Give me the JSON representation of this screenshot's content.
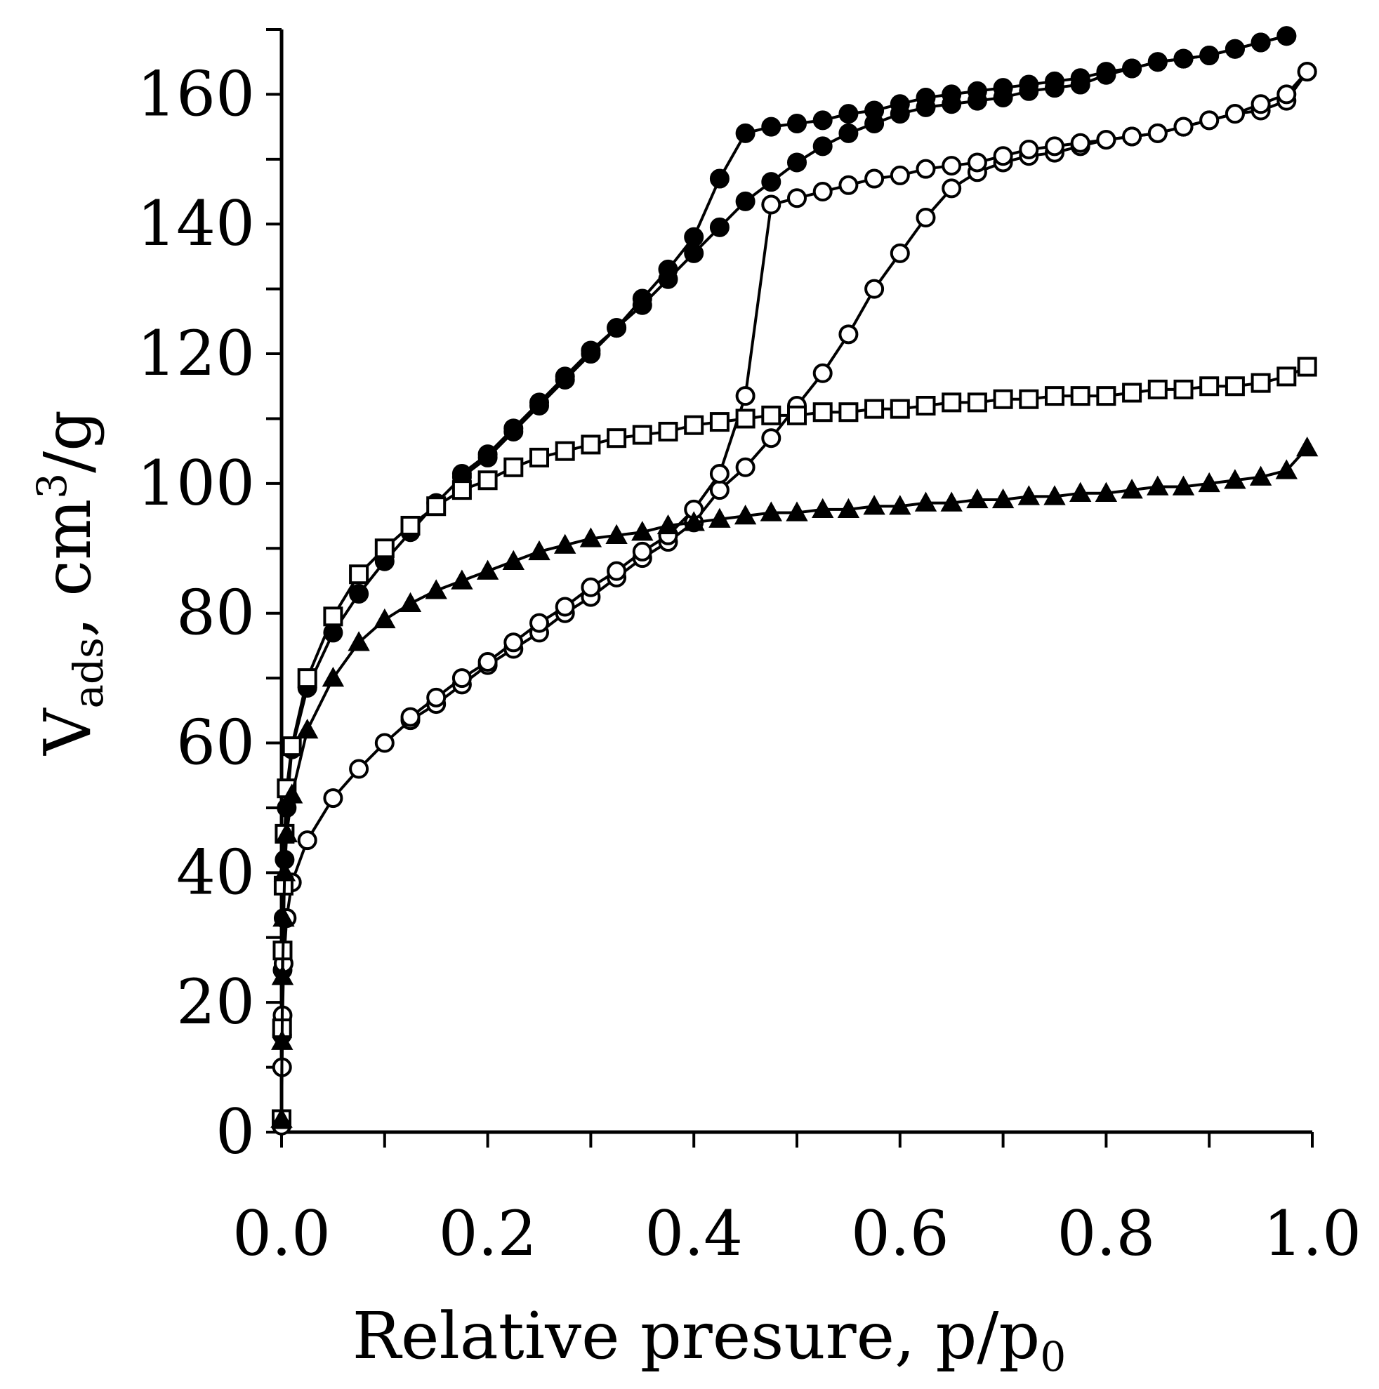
{
  "chart_data": {
    "type": "line",
    "title": "",
    "xlabel": "Relative presure, p/p",
    "xlabel_subscript": "0",
    "ylabel_main": "V",
    "ylabel_subscript": "ads",
    "ylabel_rest": ", cm",
    "ylabel_superscript": "3",
    "ylabel_tail": "/g",
    "xlim": [
      0,
      1.0
    ],
    "ylim": [
      0,
      170
    ],
    "x_ticks": [
      "0.0",
      "0.2",
      "0.4",
      "0.6",
      "0.8",
      "1.0"
    ],
    "y_ticks": [
      "0",
      "20",
      "40",
      "60",
      "80",
      "100",
      "120",
      "140",
      "160"
    ],
    "grid": false,
    "legend": "none",
    "series": [
      {
        "marker": "filled-circle",
        "adsorption": {
          "x": [
            0,
            0.0005,
            0.001,
            0.002,
            0.003,
            0.005,
            0.01,
            0.025,
            0.05,
            0.075,
            0.1,
            0.125,
            0.15,
            0.175,
            0.2,
            0.225,
            0.25,
            0.275,
            0.3,
            0.325,
            0.35,
            0.375,
            0.4,
            0.425,
            0.45,
            0.475,
            0.5,
            0.525,
            0.55,
            0.575,
            0.6,
            0.625,
            0.65,
            0.675,
            0.7,
            0.725,
            0.75,
            0.775,
            0.8,
            0.825,
            0.85,
            0.875,
            0.9,
            0.925,
            0.95,
            0.975
          ],
          "y": [
            2,
            15,
            25,
            33,
            42,
            50,
            59,
            68.5,
            77,
            83,
            88,
            92.5,
            97,
            101,
            104,
            108,
            112,
            116,
            120,
            124,
            127.5,
            131.5,
            135.5,
            139.5,
            143.5,
            146.5,
            149.5,
            152,
            154,
            155.5,
            157,
            158,
            158.5,
            159,
            159.5,
            160.5,
            161,
            161.5,
            163,
            164,
            165,
            165.5,
            166,
            167,
            168,
            169
          ]
        },
        "desorption": {
          "x": [
            0.975,
            0.95,
            0.925,
            0.9,
            0.875,
            0.85,
            0.825,
            0.8,
            0.775,
            0.75,
            0.725,
            0.7,
            0.675,
            0.65,
            0.625,
            0.6,
            0.575,
            0.55,
            0.525,
            0.5,
            0.475,
            0.45,
            0.425,
            0.4,
            0.375,
            0.35,
            0.325,
            0.3,
            0.275,
            0.25,
            0.225,
            0.2,
            0.175
          ],
          "y": [
            169,
            168,
            167,
            166,
            165.5,
            165,
            164,
            163.5,
            162.5,
            162,
            161.5,
            161,
            160.5,
            160,
            159.5,
            158.5,
            157.5,
            157,
            156,
            155.5,
            155,
            154,
            147,
            138,
            133,
            128.5,
            124,
            120.5,
            116.5,
            112.5,
            108.5,
            104.5,
            101.5
          ]
        }
      },
      {
        "marker": "open-circle",
        "adsorption": {
          "x": [
            0,
            0.0005,
            0.001,
            0.002,
            0.005,
            0.01,
            0.025,
            0.05,
            0.075,
            0.1,
            0.125,
            0.15,
            0.175,
            0.2,
            0.225,
            0.25,
            0.275,
            0.3,
            0.325,
            0.35,
            0.375,
            0.4,
            0.425,
            0.45,
            0.475,
            0.5,
            0.525,
            0.55,
            0.575,
            0.6,
            0.625,
            0.65,
            0.675,
            0.7,
            0.725,
            0.75,
            0.775,
            0.8,
            0.825,
            0.85,
            0.875,
            0.9,
            0.925,
            0.95,
            0.975,
            0.995
          ],
          "y": [
            1,
            10,
            18,
            26,
            33,
            38.5,
            45,
            51.5,
            56,
            60,
            63.5,
            66,
            69,
            72,
            74.5,
            77,
            80,
            82.5,
            85.5,
            88.5,
            91,
            94,
            99,
            102.5,
            107,
            112,
            117,
            123,
            130,
            135.5,
            141,
            145.5,
            148,
            149.5,
            150.5,
            151,
            152,
            153,
            153.5,
            154,
            155,
            156,
            157,
            157.5,
            159,
            163.5
          ]
        },
        "desorption": {
          "x": [
            0.995,
            0.975,
            0.95,
            0.925,
            0.9,
            0.875,
            0.85,
            0.825,
            0.8,
            0.775,
            0.75,
            0.725,
            0.7,
            0.675,
            0.65,
            0.625,
            0.6,
            0.575,
            0.55,
            0.525,
            0.5,
            0.475,
            0.45,
            0.425,
            0.4,
            0.375,
            0.35,
            0.325,
            0.3,
            0.275,
            0.25,
            0.225,
            0.2,
            0.175,
            0.15,
            0.125
          ],
          "y": [
            163.5,
            160,
            158.5,
            157,
            156,
            155,
            154,
            153.5,
            153,
            152.5,
            152,
            151.5,
            150.5,
            149.5,
            149,
            148.5,
            147.5,
            147,
            146,
            145,
            144,
            143,
            113.5,
            101.5,
            96,
            92,
            89.5,
            86.5,
            84,
            81,
            78.5,
            75.5,
            72.5,
            70,
            67,
            64
          ]
        }
      },
      {
        "marker": "open-square",
        "adsorption": {
          "x": [
            0,
            0.0005,
            0.001,
            0.002,
            0.003,
            0.005,
            0.01,
            0.025,
            0.05,
            0.075,
            0.1,
            0.125,
            0.15,
            0.175,
            0.2,
            0.225,
            0.25,
            0.275,
            0.3,
            0.325,
            0.35,
            0.375,
            0.4,
            0.425,
            0.45,
            0.475,
            0.5,
            0.525,
            0.55,
            0.575,
            0.6,
            0.625,
            0.65,
            0.675,
            0.7,
            0.725,
            0.75,
            0.775,
            0.8,
            0.825,
            0.85,
            0.875,
            0.9,
            0.925,
            0.95,
            0.975,
            0.995
          ],
          "y": [
            2,
            16,
            28,
            38,
            46,
            53,
            59.5,
            70,
            79.5,
            86,
            90,
            93.5,
            96.5,
            99,
            100.5,
            102.5,
            104,
            105,
            106,
            107,
            107.5,
            108,
            109,
            109.5,
            110,
            110.5,
            110.5,
            111,
            111,
            111.5,
            111.5,
            112,
            112.5,
            112.5,
            113,
            113,
            113.5,
            113.5,
            113.5,
            114,
            114.5,
            114.5,
            115,
            115,
            115.5,
            116.5,
            118
          ]
        }
      },
      {
        "marker": "filled-triangle",
        "adsorption": {
          "x": [
            0,
            0.0005,
            0.001,
            0.002,
            0.003,
            0.005,
            0.01,
            0.025,
            0.05,
            0.075,
            0.1,
            0.125,
            0.15,
            0.175,
            0.2,
            0.225,
            0.25,
            0.275,
            0.3,
            0.325,
            0.35,
            0.375,
            0.4,
            0.425,
            0.45,
            0.475,
            0.5,
            0.525,
            0.55,
            0.575,
            0.6,
            0.625,
            0.65,
            0.675,
            0.7,
            0.725,
            0.75,
            0.775,
            0.8,
            0.825,
            0.85,
            0.875,
            0.9,
            0.925,
            0.95,
            0.975,
            0.995
          ],
          "y": [
            2,
            14,
            24,
            33,
            40,
            46,
            52,
            62,
            70,
            75.5,
            79,
            81.5,
            83.5,
            85,
            86.5,
            88,
            89.5,
            90.5,
            91.5,
            92,
            92.5,
            93.5,
            94,
            94.5,
            95,
            95.5,
            95.5,
            96,
            96,
            96.5,
            96.5,
            97,
            97,
            97.5,
            97.5,
            98,
            98,
            98.5,
            98.5,
            99,
            99.5,
            99.5,
            100,
            100.5,
            101,
            102,
            105.5
          ]
        }
      }
    ]
  }
}
